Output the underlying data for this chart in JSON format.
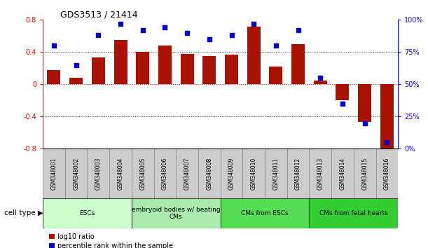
{
  "title": "GDS3513 / 21414",
  "samples": [
    "GSM348001",
    "GSM348002",
    "GSM348003",
    "GSM348004",
    "GSM348005",
    "GSM348006",
    "GSM348007",
    "GSM348008",
    "GSM348009",
    "GSM348010",
    "GSM348011",
    "GSM348012",
    "GSM348013",
    "GSM348014",
    "GSM348015",
    "GSM348016"
  ],
  "log10_ratio": [
    0.18,
    0.08,
    0.33,
    0.55,
    0.4,
    0.48,
    0.38,
    0.35,
    0.37,
    0.72,
    0.22,
    0.5,
    0.05,
    -0.2,
    -0.47,
    -0.82
  ],
  "percentile_rank": [
    80,
    65,
    88,
    97,
    92,
    94,
    90,
    85,
    88,
    97,
    80,
    92,
    55,
    35,
    20,
    5
  ],
  "bar_color": "#aa1100",
  "dot_color": "#0000cc",
  "ylim_left": [
    -0.8,
    0.8
  ],
  "ylim_right": [
    0,
    100
  ],
  "yticks_left": [
    -0.8,
    -0.4,
    0.0,
    0.4,
    0.8
  ],
  "ytick_labels_left": [
    "-0.8",
    "-0.4",
    "0",
    "0.4",
    "0.8"
  ],
  "yticks_right": [
    0,
    25,
    50,
    75,
    100
  ],
  "ytick_labels_right": [
    "0%",
    "25%",
    "50%",
    "75%",
    "100%"
  ],
  "cell_type_groups": [
    {
      "label": "ESCs",
      "start": 0,
      "end": 3,
      "color": "#ccffcc"
    },
    {
      "label": "embryoid bodies w/ beating\nCMs",
      "start": 4,
      "end": 7,
      "color": "#aaeaaa"
    },
    {
      "label": "CMs from ESCs",
      "start": 8,
      "end": 11,
      "color": "#55dd55"
    },
    {
      "label": "CMs from fetal hearts",
      "start": 12,
      "end": 15,
      "color": "#33cc33"
    }
  ],
  "legend_red_label": "log10 ratio",
  "legend_blue_label": "percentile rank within the sample",
  "cell_type_label": "cell type",
  "bg_color": "#ffffff",
  "sample_box_color": "#cccccc",
  "zero_line_color": "#cc0000",
  "dotted_line_color": "#333333",
  "bar_width": 0.6
}
